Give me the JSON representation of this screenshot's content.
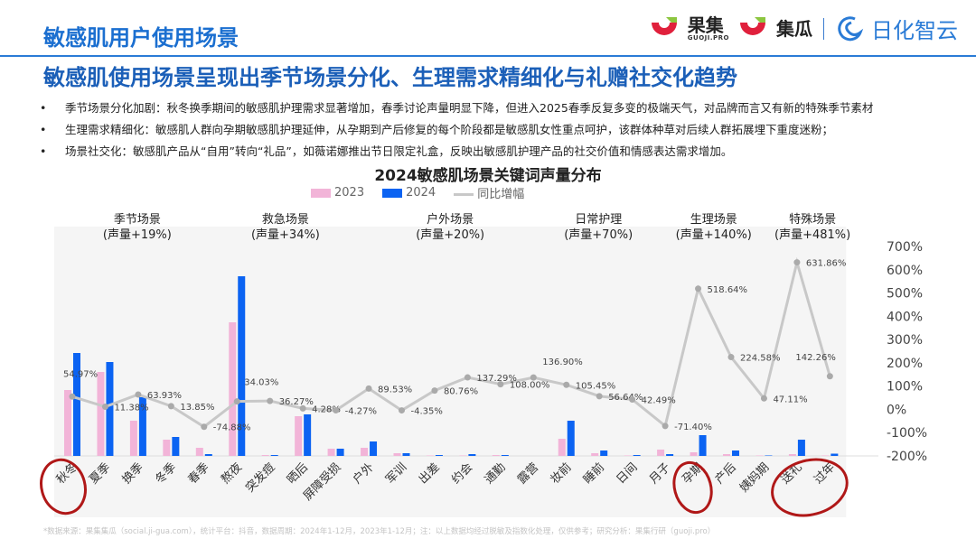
{
  "header": {
    "title": "敏感肌用户使用场景",
    "logos": [
      {
        "name": "果集",
        "sub": "GUOJI.PRO"
      },
      {
        "name": "集瓜"
      },
      {
        "name": "日化智云"
      }
    ]
  },
  "subtitle": "敏感肌使用场景呈现出季节场景分化、生理需求精细化与礼赠社交化趋势",
  "bullets": [
    "季节场景分化加剧：秋冬换季期间的敏感肌护理需求显著增加，春季讨论声量明显下降，但进入2025春季反复多变的极端天气，对品牌而言又有新的特殊季节素材",
    "生理需求精细化：敏感肌人群向孕期敏感肌护理延伸，从孕期到产后修复的每个阶段都是敏感肌女性重点呵护，该群体种草对后续人群拓展埋下重度迷粉；",
    "场景社交化：敏感肌产品从“自用”转向“礼品”，如薇诺娜推出节日限定礼盒，反映出敏感肌护理产品的社交价值和情感表达需求增加。"
  ],
  "footer": "*数据来源：果集集瓜（social.ji-gua.com），统计平台：抖音，数据周期：2024年1-12月，2023年1-12月；注：以上数据均经过脱敏及指数化处理，仅供参考；研究分析：果集行研（guoji.pro）",
  "colors": {
    "s2023": "#f2b4d8",
    "s2024": "#0b63f2",
    "line": "#c8c8c8",
    "panel": "#f5f5f5",
    "accent": "#1b6fd0",
    "circle": "#b01818"
  },
  "chart_data": {
    "type": "bar+line",
    "title": "2024敏感肌场景关键词声量分布",
    "legend": [
      "2023",
      "2024",
      "同比增幅"
    ],
    "legend_position": "top",
    "categories": [
      "秋冬",
      "夏季",
      "换季",
      "冬季",
      "春季",
      "熬夜",
      "突发痘",
      "晒后",
      "屏障受损",
      "户外",
      "军训",
      "出差",
      "约会",
      "通勤",
      "露营",
      "妆前",
      "睡前",
      "日间",
      "月子",
      "孕期",
      "产后",
      "姨妈期",
      "送礼",
      "过年"
    ],
    "groups": [
      {
        "name": "季节场景",
        "note": "(声量+19%)",
        "count": 5
      },
      {
        "name": "救急场景",
        "note": "(声量+34%)",
        "count": 4
      },
      {
        "name": "户外场景",
        "note": "(声量+20%)",
        "count": 6
      },
      {
        "name": "日常护理",
        "note": "(声量+70%)",
        "count": 3
      },
      {
        "name": "生理场景",
        "note": "(声量+140%)",
        "count": 4
      },
      {
        "name": "特殊场景",
        "note": "(声量+481%)",
        "count": 2
      }
    ],
    "series": [
      {
        "name": "2023",
        "type": "bar",
        "values": [
          73,
          93,
          39,
          18,
          9,
          148,
          1,
          44,
          8,
          9,
          3,
          0.5,
          0.5,
          1,
          0,
          19,
          3,
          0.5,
          7,
          4,
          2,
          0.5,
          2,
          0.5
        ]
      },
      {
        "name": "2024",
        "type": "bar",
        "values": [
          114,
          104,
          65,
          21,
          2,
          199,
          1,
          46,
          8,
          16,
          3,
          1,
          2,
          1,
          0,
          39,
          6,
          1,
          2,
          23,
          6,
          0.5,
          18,
          2.5
        ]
      },
      {
        "name": "同比增幅",
        "type": "line",
        "axis": "right",
        "values": [
          54.97,
          11.38,
          63.93,
          13.85,
          -74.88,
          34.03,
          36.27,
          4.28,
          -4.27,
          89.53,
          -4.35,
          80.76,
          137.29,
          108.0,
          136.9,
          105.45,
          56.64,
          42.49,
          -71.4,
          518.64,
          224.58,
          47.11,
          631.86,
          142.26
        ],
        "labels": [
          "54.97%",
          "11.38%",
          "63.93%",
          "13.85%",
          "-74.88%",
          "34.03%",
          "36.27%",
          "4.28%",
          "-4.27%",
          "89.53%",
          "-4.35%",
          "80.76%",
          "137.29%",
          "108.00%",
          "136.90%",
          "105.45%",
          "56.64%",
          "42.49%",
          "-71.40%",
          "518.64%",
          "224.58%",
          "47.11%",
          "631.86%",
          "142.26%"
        ]
      }
    ],
    "y_right": {
      "range": [
        -200,
        700
      ],
      "ticks": [
        "700%",
        "600%",
        "500%",
        "400%",
        "300%",
        "200%",
        "100%",
        "0%",
        "-100%",
        "-200%"
      ]
    },
    "highlighted": [
      "秋冬",
      "孕期",
      "送礼",
      "过年"
    ],
    "grid": false
  }
}
